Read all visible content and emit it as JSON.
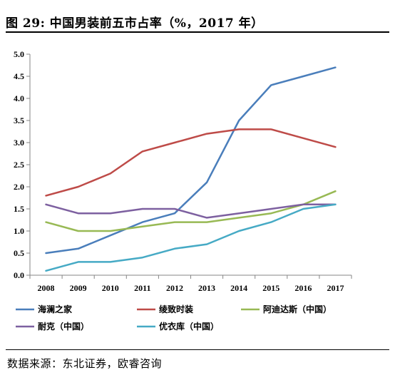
{
  "figure": {
    "title": "图 29: 中国男装前五市占率（%，2017 年）",
    "source": "数据来源：东北证券，欧睿咨询"
  },
  "chart_data": {
    "type": "line",
    "title": "图 29: 中国男装前五市占率（%，2017 年）",
    "xlabel": "",
    "ylabel": "",
    "x": [
      "2008",
      "2009",
      "2010",
      "2011",
      "2012",
      "2013",
      "2014",
      "2015",
      "2016",
      "2017"
    ],
    "ylim": [
      0,
      5
    ],
    "yticks": [
      "0.0",
      "0.5",
      "1.0",
      "1.5",
      "2.0",
      "2.5",
      "3.0",
      "3.5",
      "4.0",
      "4.5",
      "5.0"
    ],
    "grid": false,
    "legend_position": "bottom",
    "series": [
      {
        "name": "海澜之家",
        "color": "#4a7ebb",
        "values": [
          0.5,
          0.6,
          0.9,
          1.2,
          1.4,
          2.1,
          3.5,
          4.3,
          4.5,
          4.7
        ]
      },
      {
        "name": "绫致时装",
        "color": "#be4b48",
        "values": [
          1.8,
          2.0,
          2.3,
          2.8,
          3.0,
          3.2,
          3.3,
          3.3,
          3.1,
          2.9
        ]
      },
      {
        "name": "阿迪达斯（中国）",
        "color": "#98b954",
        "values": [
          1.2,
          1.0,
          1.0,
          1.1,
          1.2,
          1.2,
          1.3,
          1.4,
          1.6,
          1.9
        ]
      },
      {
        "name": "耐克（中国）",
        "color": "#7d60a0",
        "values": [
          1.6,
          1.4,
          1.4,
          1.5,
          1.5,
          1.3,
          1.4,
          1.5,
          1.6,
          1.6
        ]
      },
      {
        "name": "优衣库（中国）",
        "color": "#46aac5",
        "values": [
          0.1,
          0.3,
          0.3,
          0.4,
          0.6,
          0.7,
          1.0,
          1.2,
          1.5,
          1.6
        ]
      }
    ]
  }
}
